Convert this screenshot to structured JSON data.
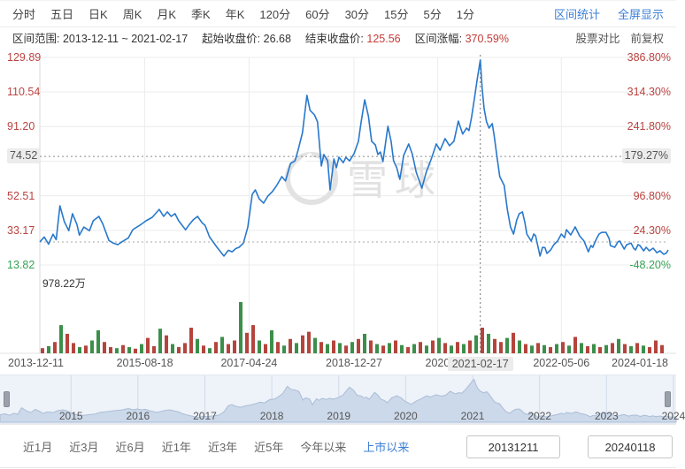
{
  "header": {
    "tabs": [
      "分时",
      "五日",
      "日K",
      "周K",
      "月K",
      "季K",
      "年K",
      "120分",
      "60分",
      "30分",
      "15分",
      "5分",
      "1分"
    ],
    "links": [
      "区间统计",
      "全屏显示"
    ]
  },
  "info": {
    "range_label": "区间范围:",
    "range_value": "2013-12-11 ~ 2021-02-17",
    "start_label": "起始收盘价:",
    "start_value": "26.68",
    "end_label": "结束收盘价:",
    "end_value": "125.56",
    "change_label": "区间涨幅:",
    "change_value": "370.59%",
    "compare_label": "股票对比",
    "adjust_label": "前复权"
  },
  "watermark": "雪球",
  "chart_data": {
    "type": "line",
    "title": "",
    "xlabel": "",
    "ylabel": "",
    "x_range": [
      "2013-12-11",
      "2024-01-18"
    ],
    "price_axis_range": [
      13.82,
      129.89
    ],
    "pct_axis_range": [
      "-48.20%",
      "386.80%"
    ],
    "price_ticks": [
      [
        0,
        "129.89"
      ],
      [
        1,
        "110.54"
      ],
      [
        2,
        "91.20"
      ],
      [
        4,
        "52.51"
      ],
      [
        5,
        "33.17"
      ],
      [
        6,
        "13.82"
      ]
    ],
    "pct_ticks": [
      [
        0,
        "386.80%"
      ],
      [
        1,
        "314.30%"
      ],
      [
        2,
        "241.80%"
      ],
      [
        4,
        "96.80%"
      ],
      [
        5,
        "24.30%"
      ],
      [
        6,
        "-48.20%"
      ]
    ],
    "marker": {
      "price": "74.52",
      "pct": "179.27%",
      "value": 74.52
    },
    "baseline_price": 26.68,
    "crosshair_t": 0.701,
    "crosshair_date": "2021-02-17",
    "volume_axis_max_label": "978.22万",
    "x_ticks": [
      {
        "t": 0,
        "label": "2013-12-11",
        "align": "left"
      },
      {
        "t": 0.167,
        "label": "2015-08-18"
      },
      {
        "t": 0.333,
        "label": "2017-04-24"
      },
      {
        "t": 0.5,
        "label": "2018-12-27"
      },
      {
        "t": 0.633,
        "label": "2020"
      },
      {
        "t": 0.701,
        "label": "2021-02-17",
        "boxed": true
      },
      {
        "t": 0.83,
        "label": "2022-05-06"
      },
      {
        "t": 1,
        "label": "2024-01-18",
        "align": "right"
      }
    ],
    "price_series": [
      [
        0,
        26.7
      ],
      [
        0.007,
        29.5
      ],
      [
        0.014,
        25.5
      ],
      [
        0.021,
        31.0
      ],
      [
        0.026,
        28.0
      ],
      [
        0.032,
        46.9
      ],
      [
        0.039,
        38.0
      ],
      [
        0.046,
        33.0
      ],
      [
        0.052,
        42.5
      ],
      [
        0.059,
        36.5
      ],
      [
        0.063,
        30.5
      ],
      [
        0.07,
        35.0
      ],
      [
        0.079,
        33.0
      ],
      [
        0.085,
        38.5
      ],
      [
        0.094,
        41.0
      ],
      [
        0.1,
        37.0
      ],
      [
        0.11,
        27.5
      ],
      [
        0.117,
        26.0
      ],
      [
        0.124,
        25.2
      ],
      [
        0.134,
        27.5
      ],
      [
        0.141,
        29.0
      ],
      [
        0.148,
        33.6
      ],
      [
        0.159,
        36.0
      ],
      [
        0.169,
        38.5
      ],
      [
        0.179,
        40.5
      ],
      [
        0.19,
        44.9
      ],
      [
        0.197,
        41.0
      ],
      [
        0.203,
        43.5
      ],
      [
        0.209,
        41.0
      ],
      [
        0.215,
        42.5
      ],
      [
        0.221,
        38.5
      ],
      [
        0.232,
        33.5
      ],
      [
        0.238,
        36.5
      ],
      [
        0.244,
        39.0
      ],
      [
        0.251,
        41.0
      ],
      [
        0.258,
        37.5
      ],
      [
        0.263,
        36.0
      ],
      [
        0.27,
        29.6
      ],
      [
        0.282,
        23.7
      ],
      [
        0.293,
        18.8
      ],
      [
        0.3,
        22.0
      ],
      [
        0.306,
        21.2
      ],
      [
        0.312,
        23.0
      ],
      [
        0.317,
        23.7
      ],
      [
        0.324,
        26.0
      ],
      [
        0.331,
        35.0
      ],
      [
        0.338,
        53.3
      ],
      [
        0.343,
        55.8
      ],
      [
        0.349,
        50.9
      ],
      [
        0.356,
        48.4
      ],
      [
        0.363,
        52.4
      ],
      [
        0.37,
        54.8
      ],
      [
        0.377,
        58.3
      ],
      [
        0.385,
        63.2
      ],
      [
        0.391,
        60.8
      ],
      [
        0.399,
        70.6
      ],
      [
        0.406,
        72.0
      ],
      [
        0.411,
        78.0
      ],
      [
        0.418,
        87.9
      ],
      [
        0.425,
        108.7
      ],
      [
        0.43,
        100.3
      ],
      [
        0.437,
        97.8
      ],
      [
        0.442,
        93.8
      ],
      [
        0.448,
        69.2
      ],
      [
        0.452,
        75.6
      ],
      [
        0.458,
        72.1
      ],
      [
        0.462,
        55.8
      ],
      [
        0.468,
        73.1
      ],
      [
        0.472,
        68.2
      ],
      [
        0.476,
        74.1
      ],
      [
        0.483,
        71.0
      ],
      [
        0.487,
        74.0
      ],
      [
        0.493,
        72.0
      ],
      [
        0.5,
        76.0
      ],
      [
        0.507,
        83.0
      ],
      [
        0.511,
        92.9
      ],
      [
        0.517,
        106.2
      ],
      [
        0.523,
        97.0
      ],
      [
        0.528,
        83.0
      ],
      [
        0.534,
        81.0
      ],
      [
        0.538,
        75.6
      ],
      [
        0.542,
        77.0
      ],
      [
        0.546,
        71.6
      ],
      [
        0.554,
        91.4
      ],
      [
        0.559,
        83.0
      ],
      [
        0.563,
        72.1
      ],
      [
        0.568,
        68.2
      ],
      [
        0.573,
        61.7
      ],
      [
        0.579,
        75.0
      ],
      [
        0.587,
        81.5
      ],
      [
        0.593,
        75.6
      ],
      [
        0.599,
        65.7
      ],
      [
        0.604,
        60.8
      ],
      [
        0.608,
        56.8
      ],
      [
        0.615,
        65.7
      ],
      [
        0.623,
        73.1
      ],
      [
        0.631,
        81.5
      ],
      [
        0.637,
        78.0
      ],
      [
        0.645,
        84.5
      ],
      [
        0.652,
        80.5
      ],
      [
        0.659,
        83.0
      ],
      [
        0.666,
        94.3
      ],
      [
        0.673,
        87.0
      ],
      [
        0.679,
        90.4
      ],
      [
        0.683,
        89.0
      ],
      [
        0.687,
        96.3
      ],
      [
        0.692,
        107.7
      ],
      [
        0.696,
        117.6
      ],
      [
        0.701,
        128.4
      ],
      [
        0.704,
        112.6
      ],
      [
        0.707,
        101.3
      ],
      [
        0.711,
        93.8
      ],
      [
        0.715,
        90.4
      ],
      [
        0.72,
        92.9
      ],
      [
        0.723,
        86.4
      ],
      [
        0.728,
        73.1
      ],
      [
        0.732,
        63.2
      ],
      [
        0.739,
        58.3
      ],
      [
        0.744,
        45.0
      ],
      [
        0.749,
        35.1
      ],
      [
        0.754,
        31.1
      ],
      [
        0.759,
        39.0
      ],
      [
        0.763,
        42.5
      ],
      [
        0.768,
        43.5
      ],
      [
        0.772,
        37.5
      ],
      [
        0.775,
        31.1
      ],
      [
        0.782,
        27.2
      ],
      [
        0.786,
        31.1
      ],
      [
        0.789,
        30.1
      ],
      [
        0.796,
        18.8
      ],
      [
        0.8,
        23.7
      ],
      [
        0.804,
        23.5
      ],
      [
        0.807,
        20.3
      ],
      [
        0.813,
        22.2
      ],
      [
        0.818,
        25.2
      ],
      [
        0.824,
        27.2
      ],
      [
        0.83,
        31.1
      ],
      [
        0.835,
        29.1
      ],
      [
        0.838,
        33.6
      ],
      [
        0.845,
        30.6
      ],
      [
        0.852,
        35.1
      ],
      [
        0.859,
        30.1
      ],
      [
        0.866,
        27.2
      ],
      [
        0.873,
        21.2
      ],
      [
        0.877,
        24.7
      ],
      [
        0.88,
        23.7
      ],
      [
        0.886,
        28.6
      ],
      [
        0.89,
        31.1
      ],
      [
        0.894,
        32.0
      ],
      [
        0.901,
        32.1
      ],
      [
        0.906,
        28.6
      ],
      [
        0.908,
        24.7
      ],
      [
        0.915,
        23.7
      ],
      [
        0.92,
        26.7
      ],
      [
        0.923,
        27.2
      ],
      [
        0.93,
        22.7
      ],
      [
        0.934,
        25.2
      ],
      [
        0.941,
        26.0
      ],
      [
        0.945,
        23.2
      ],
      [
        0.948,
        22.2
      ],
      [
        0.952,
        25.2
      ],
      [
        0.955,
        24.7
      ],
      [
        0.961,
        21.7
      ],
      [
        0.965,
        23.7
      ],
      [
        0.97,
        21.7
      ],
      [
        0.976,
        23.2
      ],
      [
        0.982,
        20.7
      ],
      [
        0.987,
        21.7
      ],
      [
        0.993,
        19.8
      ],
      [
        0.997,
        20.5
      ],
      [
        1,
        22.2
      ]
    ],
    "volume_bars": {
      "heights": [
        0.1,
        0.14,
        0.22,
        0.55,
        0.38,
        0.2,
        0.12,
        0.15,
        0.25,
        0.45,
        0.22,
        0.12,
        0.1,
        0.16,
        0.12,
        0.09,
        0.18,
        0.3,
        0.14,
        0.48,
        0.35,
        0.18,
        0.12,
        0.2,
        0.5,
        0.28,
        0.15,
        0.1,
        0.22,
        0.32,
        0.18,
        0.25,
        1.0,
        0.4,
        0.55,
        0.25,
        0.18,
        0.45,
        0.22,
        0.15,
        0.28,
        0.2,
        0.35,
        0.42,
        0.3,
        0.22,
        0.18,
        0.25,
        0.2,
        0.15,
        0.22,
        0.28,
        0.38,
        0.25,
        0.18,
        0.15,
        0.2,
        0.25,
        0.16,
        0.12,
        0.18,
        0.22,
        0.15,
        0.25,
        0.3,
        0.2,
        0.15,
        0.22,
        0.18,
        0.25,
        0.35,
        0.5,
        0.38,
        0.28,
        0.22,
        0.3,
        0.4,
        0.25,
        0.18,
        0.15,
        0.2,
        0.16,
        0.12,
        0.18,
        0.22,
        0.15,
        0.32,
        0.2,
        0.14,
        0.18,
        0.12,
        0.16,
        0.2,
        0.28,
        0.18,
        0.14,
        0.2,
        0.15,
        0.12,
        0.25,
        0.16
      ],
      "colors": "rgrgrrgrggrrgrgrgrrgrgrrrgrgrgrrgrrgrgrgrgrrgrgrgrgrgrgrgrgrgrgrgrgrgrgrgrrgrgrgrgrgrgrgrgrgrgrgrgr"
    },
    "navigator_years": [
      {
        "t": 0.105,
        "label": "2015"
      },
      {
        "t": 0.204,
        "label": "2016"
      },
      {
        "t": 0.303,
        "label": "2017"
      },
      {
        "t": 0.402,
        "label": "2018"
      },
      {
        "t": 0.501,
        "label": "2019"
      },
      {
        "t": 0.6,
        "label": "2020"
      },
      {
        "t": 0.699,
        "label": "2021"
      },
      {
        "t": 0.798,
        "label": "2022"
      },
      {
        "t": 0.897,
        "label": "2023"
      },
      {
        "t": 0.996,
        "label": "2024"
      }
    ]
  },
  "footer": {
    "buttons": [
      "近1月",
      "近3月",
      "近6月",
      "近1年",
      "近3年",
      "近5年",
      "今年以来",
      "上市以来"
    ],
    "active_index": 7,
    "date_from": "20131211",
    "date_to": "20240118"
  },
  "colors": {
    "accent_blue": "#3b7fd6",
    "price_line": "#2878cc",
    "label_red": "#ba4340",
    "value_red": "#c43c38",
    "label_green": "#35a254",
    "volume_red": "#b5443c",
    "volume_green": "#3c8f4a",
    "grid": "#ececec",
    "dashed": "#8c8c8c",
    "marker_bg": "#ececec",
    "nav_fill": "#ccd9ea",
    "nav_stroke": "#aabdd6",
    "nav_grid": "#d3dbe8",
    "watermark_grey": "#e2e2e2"
  }
}
